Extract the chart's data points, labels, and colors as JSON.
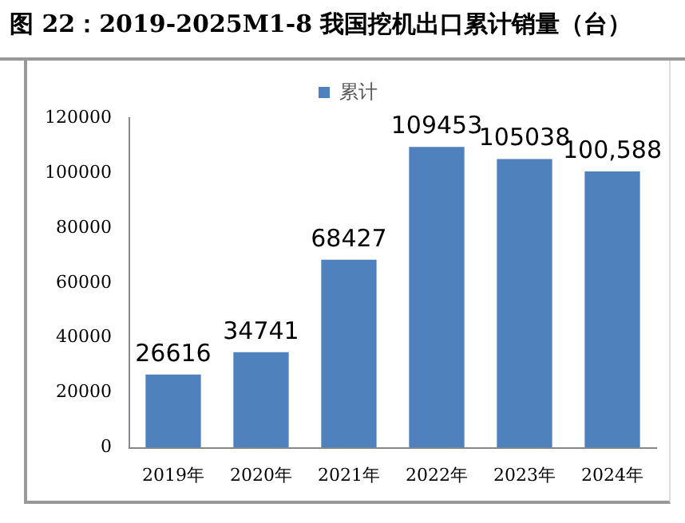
{
  "chart_data": {
    "type": "bar",
    "title": "图 22：2019-2025M1-8 我国挖机出口累计销量（台）",
    "categories": [
      "2019年",
      "2020年",
      "2021年",
      "2022年",
      "2023年",
      "2024年"
    ],
    "series": [
      {
        "name": "累计",
        "color": "#4f81bd",
        "values": [
          26616,
          34741,
          68427,
          109453,
          105038,
          100588
        ],
        "value_labels": [
          "26616",
          "34741",
          "68427",
          "109453",
          "105038",
          "100,588"
        ]
      }
    ],
    "ylim": [
      0,
      120000
    ],
    "yticks": [
      0,
      20000,
      40000,
      60000,
      80000,
      100000,
      120000
    ],
    "grid": false,
    "legend": "top"
  }
}
